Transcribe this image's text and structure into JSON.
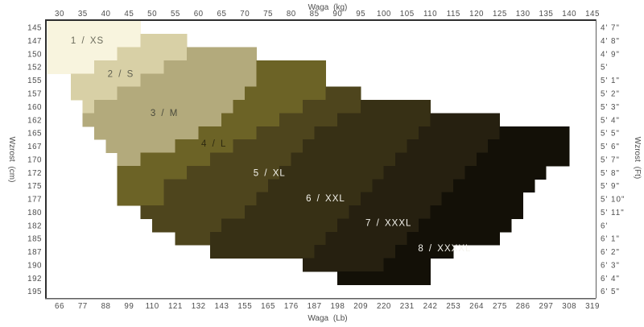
{
  "chart_data": {
    "type": "heatmap",
    "title": "",
    "xlabel_top": "Waga  (kg)",
    "xlabel_bottom": "Waga  (Lb)",
    "ylabel_left": "Wzrost  (cm)",
    "ylabel_right": "Wzrost  (Ft)",
    "xlim": [
      27.5,
      146
    ],
    "ylim": [
      145,
      197.5
    ],
    "grid": false,
    "legend": "none",
    "kg_ticks": [
      30,
      35,
      40,
      45,
      50,
      55,
      60,
      65,
      70,
      75,
      80,
      85,
      90,
      95,
      100,
      105,
      110,
      115,
      120,
      125,
      130,
      135,
      140,
      145
    ],
    "lb_ticks": [
      66,
      77,
      88,
      99,
      110,
      121,
      132,
      143,
      155,
      165,
      176,
      187,
      198,
      209,
      220,
      231,
      242,
      253,
      264,
      275,
      286,
      297,
      308,
      319
    ],
    "cm_ticks": [
      145,
      147,
      150,
      152,
      155,
      157,
      160,
      162,
      165,
      167,
      170,
      172,
      175,
      177,
      180,
      182,
      185,
      187,
      190,
      192,
      195
    ],
    "ft_ticks": [
      "4' 7\"",
      "4' 8\"",
      "4' 9\"",
      "5'",
      "5' 1\"",
      "5' 2\"",
      "5' 3\"",
      "5' 4\"",
      "5' 5\"",
      "5' 6\"",
      "5' 7\"",
      "5' 8\"",
      "5' 9\"",
      "5' 10\"",
      "5' 11\"",
      "6'",
      "6' 1\"",
      "6' 2\"",
      "6' 3\"",
      "6' 4\"",
      "6' 5\""
    ],
    "tick_color": "#4d4d4d",
    "spine_dark": "#2e2e2e",
    "spine_light": "#5e5e5e",
    "sizes": [
      {
        "id": "1-xs",
        "label": "1  /  XS",
        "color": "#f8f4de",
        "label_color": "#6b6b5c",
        "label_pos": {
          "kg": 36,
          "cm": 148.7
        },
        "cells": [
          [
            145,
            27.5,
            47.5
          ],
          [
            147.5,
            27.5,
            47.5
          ],
          [
            150,
            27.5,
            42.5
          ],
          [
            152.5,
            27.5,
            37.5
          ]
        ]
      },
      {
        "id": "2-s",
        "label": "2  /  S",
        "color": "#d8d0a6",
        "label_color": "#5f5f50",
        "label_pos": {
          "kg": 43.2,
          "cm": 155
        },
        "cells": [
          [
            147.5,
            47.5,
            57.5
          ],
          [
            150,
            42.5,
            57.5
          ],
          [
            152.5,
            37.5,
            52.5
          ],
          [
            155,
            32.5,
            47.5
          ],
          [
            157.5,
            32.5,
            42.5
          ],
          [
            160,
            35,
            37.5
          ]
        ]
      },
      {
        "id": "3-m",
        "label": "3  /  M",
        "color": "#b3aa7c",
        "label_color": "#4b4b3c",
        "label_pos": {
          "kg": 52.6,
          "cm": 162.4
        },
        "cells": [
          [
            150,
            57.5,
            72.5
          ],
          [
            152.5,
            52.5,
            72.5
          ],
          [
            155,
            47.5,
            72.5
          ],
          [
            157.5,
            42.5,
            70
          ],
          [
            160,
            37.5,
            67.5
          ],
          [
            162.5,
            35,
            65
          ],
          [
            165,
            37.5,
            60
          ],
          [
            167.5,
            40,
            55
          ],
          [
            170,
            42.5,
            47.5
          ]
        ]
      },
      {
        "id": "4-l",
        "label": "4  /  L",
        "color": "#6c6326",
        "label_color": "#2e2a10",
        "label_pos": {
          "kg": 63.3,
          "cm": 168.2
        },
        "cells": [
          [
            152.5,
            72.5,
            87.5
          ],
          [
            155,
            72.5,
            87.5
          ],
          [
            157.5,
            70,
            87.5
          ],
          [
            160,
            67.5,
            82.5
          ],
          [
            162.5,
            65,
            77.5
          ],
          [
            165,
            60,
            72.5
          ],
          [
            167.5,
            55,
            67.5
          ],
          [
            170,
            47.5,
            62.5
          ],
          [
            172.5,
            42.5,
            57.5
          ],
          [
            175,
            42.5,
            52.5
          ],
          [
            177.5,
            42.5,
            52.5
          ]
        ]
      },
      {
        "id": "5-xl",
        "label": "5  /  XL",
        "color": "#4e451d",
        "label_color": "#f5f4ee",
        "label_pos": {
          "kg": 75.3,
          "cm": 173.8
        },
        "cells": [
          [
            157.5,
            87.5,
            95
          ],
          [
            160,
            82.5,
            95
          ],
          [
            162.5,
            77.5,
            90
          ],
          [
            165,
            72.5,
            85
          ],
          [
            167.5,
            67.5,
            82.5
          ],
          [
            170,
            62.5,
            80
          ],
          [
            172.5,
            57.5,
            77.5
          ],
          [
            175,
            52.5,
            75
          ],
          [
            177.5,
            52.5,
            72.5
          ],
          [
            180,
            47.5,
            70
          ],
          [
            182.5,
            50,
            65
          ],
          [
            185,
            55,
            62.5
          ]
        ]
      },
      {
        "id": "6-xxl",
        "label": "6  /  XXL",
        "color": "#373015",
        "label_color": "#f5f4ee",
        "label_pos": {
          "kg": 87.4,
          "cm": 178.6
        },
        "cells": [
          [
            160,
            95,
            110
          ],
          [
            162.5,
            90,
            110
          ],
          [
            165,
            85,
            107.5
          ],
          [
            167.5,
            82.5,
            105
          ],
          [
            170,
            80,
            102.5
          ],
          [
            172.5,
            77.5,
            100
          ],
          [
            175,
            75,
            97.5
          ],
          [
            177.5,
            72.5,
            95
          ],
          [
            180,
            70,
            92.5
          ],
          [
            182.5,
            65,
            90
          ],
          [
            185,
            62.5,
            87.5
          ],
          [
            187.5,
            62.5,
            85
          ]
        ]
      },
      {
        "id": "7-xxxl",
        "label": "7  /  XXXL",
        "color": "#262010",
        "label_color": "#f5f4ee",
        "label_pos": {
          "kg": 101,
          "cm": 183.2
        },
        "cells": [
          [
            162.5,
            110,
            125
          ],
          [
            165,
            107.5,
            125
          ],
          [
            167.5,
            105,
            122.5
          ],
          [
            170,
            102.5,
            120
          ],
          [
            172.5,
            100,
            117.5
          ],
          [
            175,
            97.5,
            115
          ],
          [
            177.5,
            95,
            112.5
          ],
          [
            180,
            92.5,
            110
          ],
          [
            182.5,
            90,
            107.5
          ],
          [
            185,
            87.5,
            105
          ],
          [
            187.5,
            85,
            102.5
          ],
          [
            190,
            82.5,
            100
          ]
        ]
      },
      {
        "id": "8-xxxxl",
        "label": "8  /  XXXXL",
        "color": "#131007",
        "label_color": "#f5f4ee",
        "label_pos": {
          "kg": 113.1,
          "cm": 188
        },
        "cells": [
          [
            165,
            125,
            140
          ],
          [
            167.5,
            122.5,
            140
          ],
          [
            170,
            120,
            140
          ],
          [
            172.5,
            117.5,
            135
          ],
          [
            175,
            115,
            132.5
          ],
          [
            177.5,
            112.5,
            130
          ],
          [
            180,
            110,
            130
          ],
          [
            182.5,
            107.5,
            127.5
          ],
          [
            185,
            105,
            125
          ],
          [
            187.5,
            102.5,
            115
          ],
          [
            190,
            100,
            110
          ],
          [
            192.5,
            90,
            110
          ]
        ]
      }
    ]
  }
}
